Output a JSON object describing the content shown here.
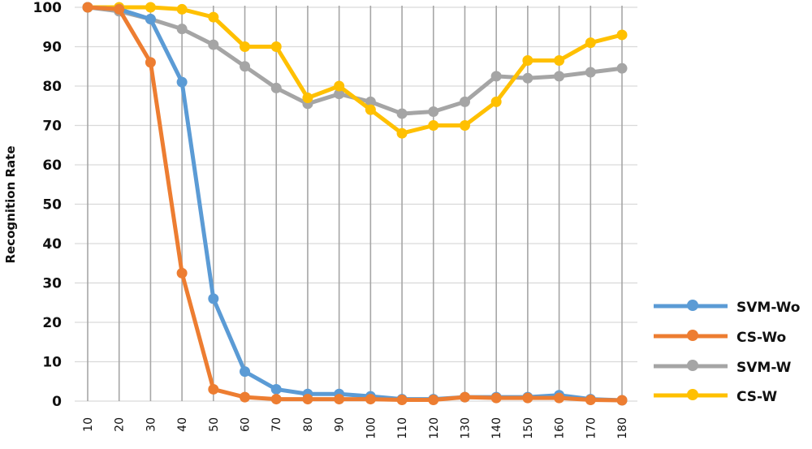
{
  "chart_data": {
    "type": "line",
    "title": "",
    "xlabel": "",
    "ylabel": "Recognition Rate",
    "ylim": [
      0,
      100
    ],
    "yticks": [
      0,
      10,
      20,
      30,
      40,
      50,
      60,
      70,
      80,
      90,
      100
    ],
    "x": [
      10,
      20,
      30,
      40,
      50,
      60,
      70,
      80,
      90,
      100,
      110,
      120,
      130,
      140,
      150,
      160,
      170,
      180
    ],
    "grid": {
      "horizontal": true,
      "vertical": true
    },
    "legend_position": "right-bottom",
    "series": [
      {
        "name": "SVM-Wo",
        "color": "#5B9BD5",
        "values": [
          100,
          99.5,
          97,
          81,
          26,
          7.5,
          3,
          1.8,
          1.8,
          1.2,
          0.5,
          0.5,
          1,
          1,
          1,
          1.5,
          0.5,
          0.2
        ]
      },
      {
        "name": "CS-Wo",
        "color": "#ED7D31",
        "values": [
          100,
          99.5,
          86,
          32.5,
          3,
          1,
          0.5,
          0.5,
          0.5,
          0.5,
          0.3,
          0.3,
          1,
          0.8,
          0.8,
          0.8,
          0.3,
          0.2
        ]
      },
      {
        "name": "SVM-W",
        "color": "#A5A5A5",
        "values": [
          100,
          99,
          97,
          94.5,
          90.5,
          85,
          79.5,
          75.5,
          78,
          76,
          73,
          73.5,
          76,
          82.5,
          82,
          82.5,
          83.5,
          84.5
        ]
      },
      {
        "name": "CS-W",
        "color": "#FFC000",
        "values": [
          100,
          100,
          100,
          99.5,
          97.5,
          90,
          90,
          77,
          80,
          74,
          68,
          70,
          70,
          76,
          86.5,
          86.5,
          91,
          93
        ]
      }
    ]
  },
  "legend": {
    "items": [
      {
        "label": "SVM-Wo"
      },
      {
        "label": "CS-Wo"
      },
      {
        "label": "SVM-W"
      },
      {
        "label": "CS-W"
      }
    ]
  }
}
